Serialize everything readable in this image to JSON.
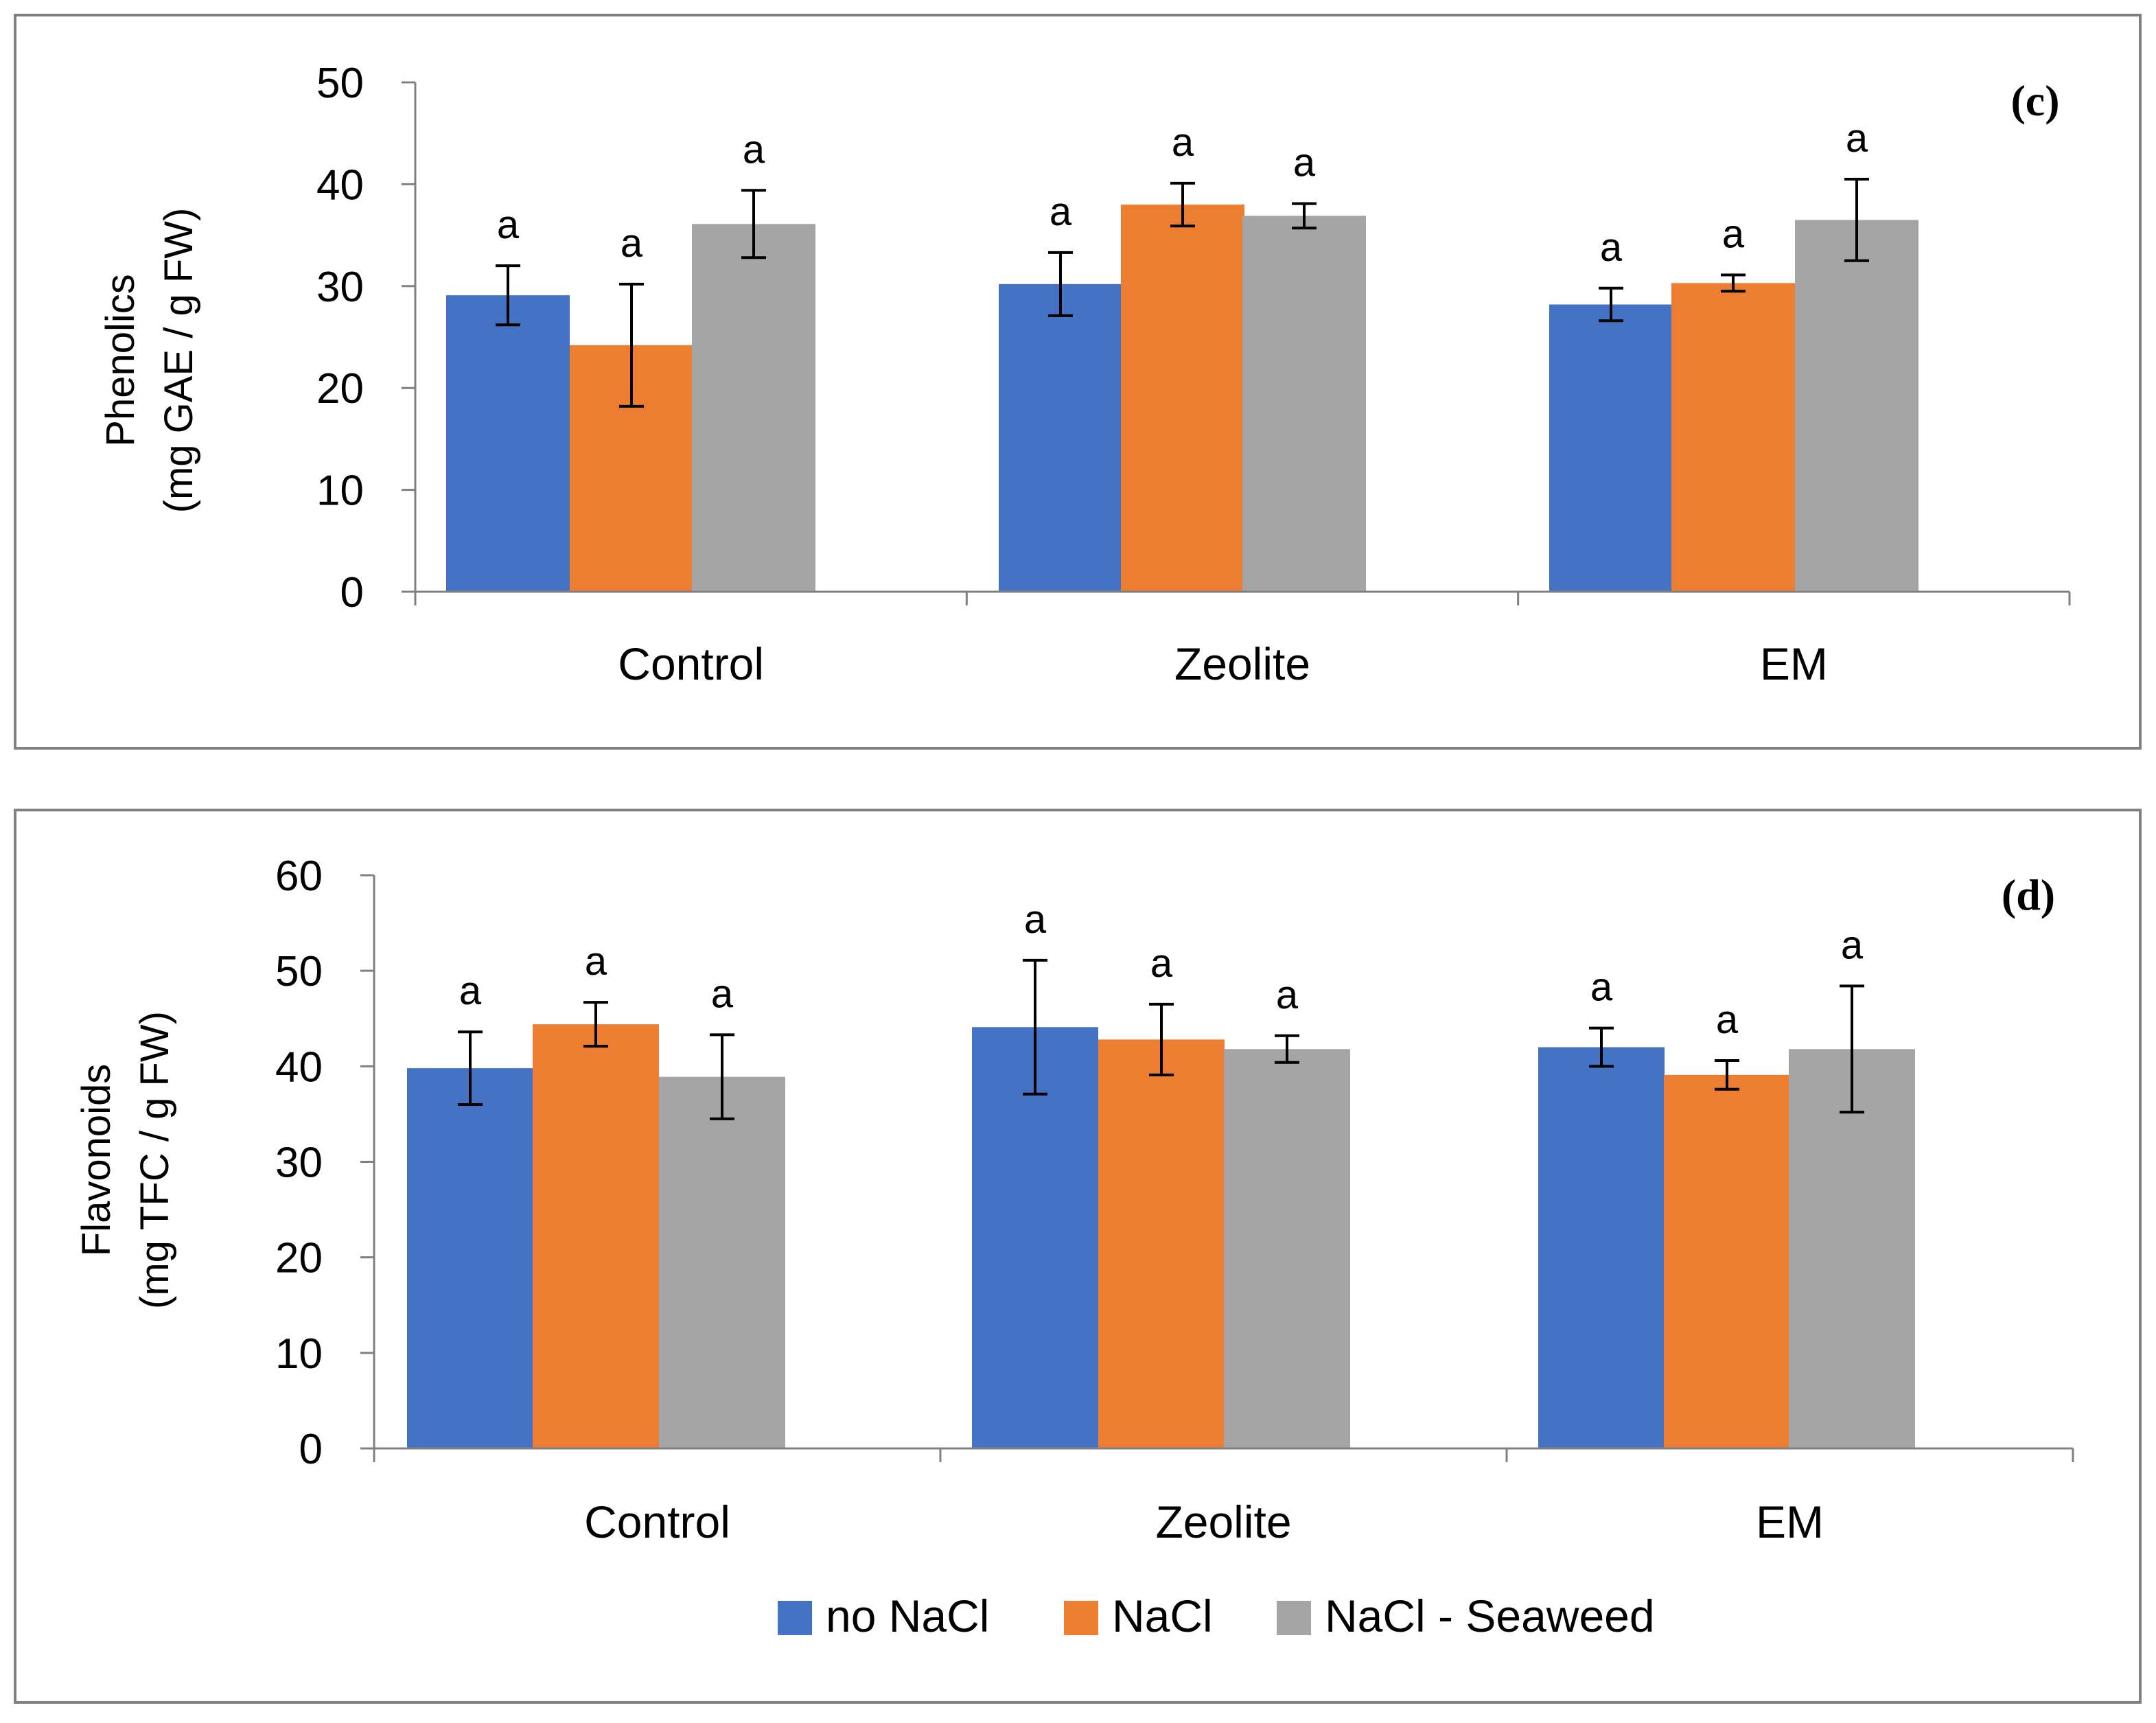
{
  "chart_data": [
    {
      "type": "bar",
      "panel_tag": "(c)",
      "ylabel_line1": "Phenolics",
      "ylabel_line2": "(mg GAE / g FW)",
      "xlabel": "",
      "categories": [
        "Control",
        "Zeolite",
        "EM"
      ],
      "ylim": [
        0,
        50
      ],
      "yticks": [
        "0",
        "10",
        "20",
        "30",
        "40",
        "50"
      ],
      "grid": false,
      "series": [
        {
          "name": "no NaCl",
          "color": "#4472C4",
          "values": [
            29.1,
            30.2,
            28.2
          ],
          "errors": [
            2.9,
            3.1,
            1.6
          ],
          "letters": [
            "a",
            "a",
            "a"
          ]
        },
        {
          "name": "NaCl",
          "color": "#ED7D31",
          "values": [
            24.2,
            38.0,
            30.3
          ],
          "errors": [
            6.0,
            2.1,
            0.8
          ],
          "letters": [
            "a",
            "a",
            "a"
          ]
        },
        {
          "name": "NaCl - Seaweed",
          "color": "#A5A5A5",
          "values": [
            36.1,
            36.9,
            36.5
          ],
          "errors": [
            3.3,
            1.2,
            4.0
          ],
          "letters": [
            "a",
            "a",
            "a"
          ]
        }
      ]
    },
    {
      "type": "bar",
      "panel_tag": "(d)",
      "ylabel_line1": "Flavonoids",
      "ylabel_line2": "(mg TFC  / g FW)",
      "xlabel": "",
      "categories": [
        "Control",
        "Zeolite",
        "EM"
      ],
      "ylim": [
        0,
        60
      ],
      "yticks": [
        "0",
        "10",
        "20",
        "30",
        "40",
        "50",
        "60"
      ],
      "grid": false,
      "series": [
        {
          "name": "no NaCl",
          "color": "#4472C4",
          "values": [
            39.8,
            44.1,
            42.0
          ],
          "errors": [
            3.8,
            7.0,
            2.0
          ],
          "letters": [
            "a",
            "a",
            "a"
          ]
        },
        {
          "name": "NaCl",
          "color": "#ED7D31",
          "values": [
            44.4,
            42.8,
            39.1
          ],
          "errors": [
            2.3,
            3.7,
            1.5
          ],
          "letters": [
            "a",
            "a",
            "a"
          ]
        },
        {
          "name": "NaCl - Seaweed",
          "color": "#A5A5A5",
          "values": [
            38.9,
            41.8,
            41.8
          ],
          "errors": [
            4.4,
            1.4,
            6.6
          ],
          "letters": [
            "a",
            "a",
            "a"
          ]
        }
      ]
    }
  ],
  "legend": {
    "placement": "bottom",
    "items": [
      {
        "label": "no NaCl",
        "color": "#4472C4"
      },
      {
        "label": "NaCl",
        "color": "#ED7D31"
      },
      {
        "label": "NaCl - Seaweed",
        "color": "#A5A5A5"
      }
    ]
  },
  "styles": {
    "border_color": "#808080",
    "axis_color": "#808080",
    "error_bar_color": "#000000"
  }
}
